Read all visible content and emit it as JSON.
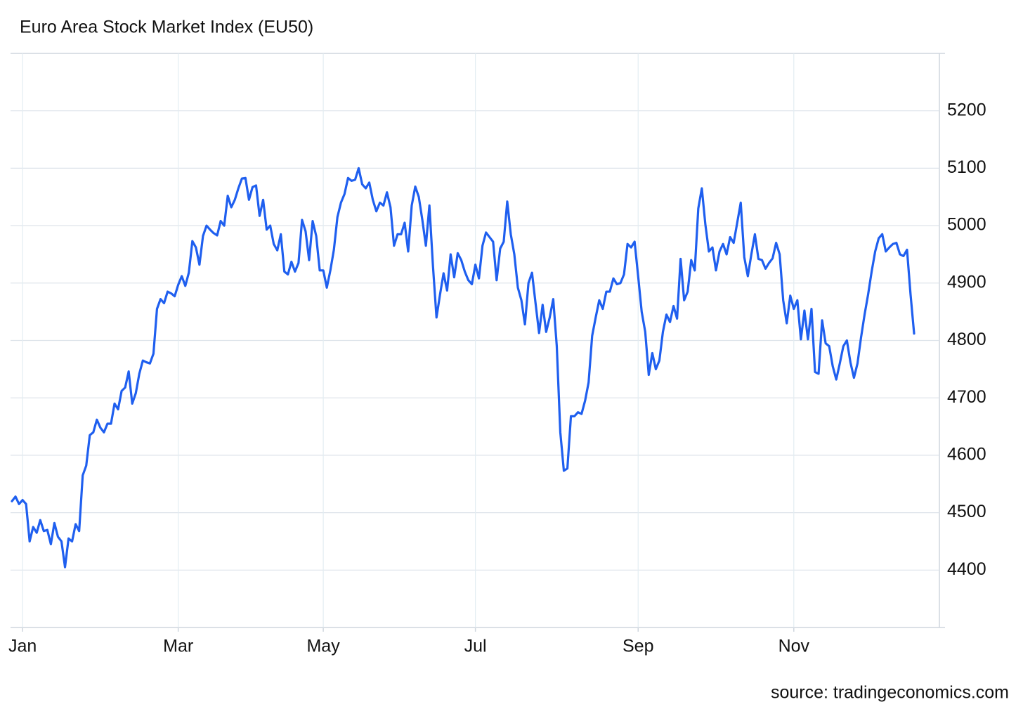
{
  "chart_data": {
    "type": "line",
    "title": "Euro Area Stock Market Index (EU50)",
    "source": "source: tradingeconomics.com",
    "categories": [
      null,
      null,
      null,
      "Jan",
      null,
      null,
      null,
      null,
      null,
      null,
      null,
      null,
      null,
      null,
      null,
      null,
      null,
      null,
      null,
      null,
      null,
      null,
      null,
      null,
      null,
      null,
      null,
      null,
      null,
      null,
      null,
      null,
      null,
      null,
      null,
      null,
      null,
      null,
      null,
      null,
      null,
      null,
      null,
      null,
      null,
      null,
      null,
      "Mar",
      null,
      null,
      null,
      null,
      null,
      null,
      null,
      null,
      null,
      null,
      null,
      null,
      null,
      null,
      null,
      null,
      null,
      null,
      null,
      null,
      null,
      null,
      null,
      null,
      null,
      null,
      null,
      null,
      null,
      null,
      null,
      null,
      null,
      null,
      null,
      null,
      null,
      null,
      null,
      null,
      "May",
      null,
      null,
      null,
      null,
      null,
      null,
      null,
      null,
      null,
      null,
      null,
      null,
      null,
      null,
      null,
      null,
      null,
      null,
      null,
      null,
      null,
      null,
      null,
      null,
      null,
      null,
      null,
      null,
      null,
      null,
      null,
      null,
      null,
      null,
      null,
      null,
      null,
      null,
      null,
      null,
      null,
      null,
      "Jul",
      null,
      null,
      null,
      null,
      null,
      null,
      null,
      null,
      null,
      null,
      null,
      null,
      null,
      null,
      null,
      null,
      null,
      null,
      null,
      null,
      null,
      null,
      null,
      null,
      null,
      null,
      null,
      null,
      null,
      null,
      null,
      null,
      null,
      null,
      null,
      null,
      null,
      null,
      null,
      null,
      null,
      null,
      null,
      null,
      null,
      "Sep",
      null,
      null,
      null,
      null,
      null,
      null,
      null,
      null,
      null,
      null,
      null,
      null,
      null,
      null,
      null,
      null,
      null,
      null,
      null,
      null,
      null,
      null,
      null,
      null,
      null,
      null,
      null,
      null,
      null,
      null,
      null,
      null,
      null,
      null,
      null,
      null,
      null,
      null,
      null,
      null,
      null,
      null,
      null,
      "Nov",
      null,
      null,
      null,
      null,
      null,
      null,
      null,
      null,
      null,
      null,
      null,
      null,
      null,
      null,
      null,
      null,
      null,
      null,
      null,
      null,
      null,
      null,
      null,
      null,
      null,
      null,
      null,
      null,
      null,
      null,
      null,
      null,
      null,
      null
    ],
    "series": [
      {
        "name": "EU50",
        "color": "#1f5fef",
        "values": [
          4520,
          4528,
          4515,
          4522,
          4515,
          4450,
          4475,
          4465,
          4487,
          4468,
          4470,
          4445,
          4482,
          4458,
          4450,
          4405,
          4455,
          4450,
          4480,
          4468,
          4565,
          4582,
          4635,
          4640,
          4662,
          4648,
          4640,
          4655,
          4655,
          4690,
          4680,
          4712,
          4718,
          4746,
          4690,
          4708,
          4742,
          4765,
          4762,
          4760,
          4777,
          4855,
          4872,
          4865,
          4885,
          4882,
          4877,
          4897,
          4912,
          4895,
          4918,
          4973,
          4962,
          4932,
          4982,
          5000,
          4993,
          4987,
          4983,
          5008,
          5000,
          5052,
          5032,
          5045,
          5065,
          5082,
          5083,
          5045,
          5067,
          5070,
          5017,
          5045,
          4993,
          5000,
          4968,
          4957,
          4985,
          4920,
          4915,
          4937,
          4920,
          4935,
          5010,
          4990,
          4940,
          5008,
          4982,
          4922,
          4922,
          4892,
          4922,
          4958,
          5015,
          5040,
          5055,
          5083,
          5078,
          5080,
          5100,
          5072,
          5065,
          5075,
          5045,
          5025,
          5040,
          5035,
          5058,
          5032,
          4965,
          4985,
          4985,
          5005,
          4955,
          5035,
          5068,
          5050,
          5010,
          4965,
          5035,
          4930,
          4840,
          4880,
          4917,
          4887,
          4950,
          4910,
          4952,
          4940,
          4920,
          4905,
          4898,
          4932,
          4908,
          4965,
          4988,
          4980,
          4972,
          4905,
          4960,
          4972,
          5042,
          4985,
          4950,
          4892,
          4870,
          4828,
          4900,
          4918,
          4865,
          4813,
          4862,
          4815,
          4840,
          4872,
          4790,
          4640,
          4573,
          4577,
          4668,
          4668,
          4675,
          4672,
          4695,
          4727,
          4808,
          4840,
          4870,
          4855,
          4885,
          4885,
          4908,
          4898,
          4900,
          4915,
          4968,
          4962,
          4972,
          4912,
          4850,
          4815,
          4740,
          4778,
          4750,
          4765,
          4815,
          4845,
          4832,
          4860,
          4838,
          4942,
          4870,
          4885,
          4940,
          4922,
          5030,
          5065,
          5002,
          4955,
          4962,
          4922,
          4955,
          4968,
          4950,
          4980,
          4970,
          5005,
          5040,
          4945,
          4912,
          4950,
          4985,
          4942,
          4940,
          4925,
          4935,
          4943,
          4970,
          4950,
          4870,
          4830,
          4878,
          4855,
          4870,
          4802,
          4852,
          4802,
          4855,
          4745,
          4742,
          4835,
          4795,
          4790,
          4755,
          4732,
          4760,
          4790,
          4800,
          4762,
          4735,
          4760,
          4805,
          4845,
          4880,
          4920,
          4955,
          4978,
          4985,
          4955,
          4962,
          4968,
          4970,
          4950,
          4947,
          4958,
          4880,
          4812
        ]
      }
    ],
    "ylim": [
      4300,
      5300
    ],
    "yticks": [
      4400,
      4500,
      4600,
      4700,
      4800,
      4900,
      5000,
      5100,
      5200
    ],
    "grid": true
  }
}
